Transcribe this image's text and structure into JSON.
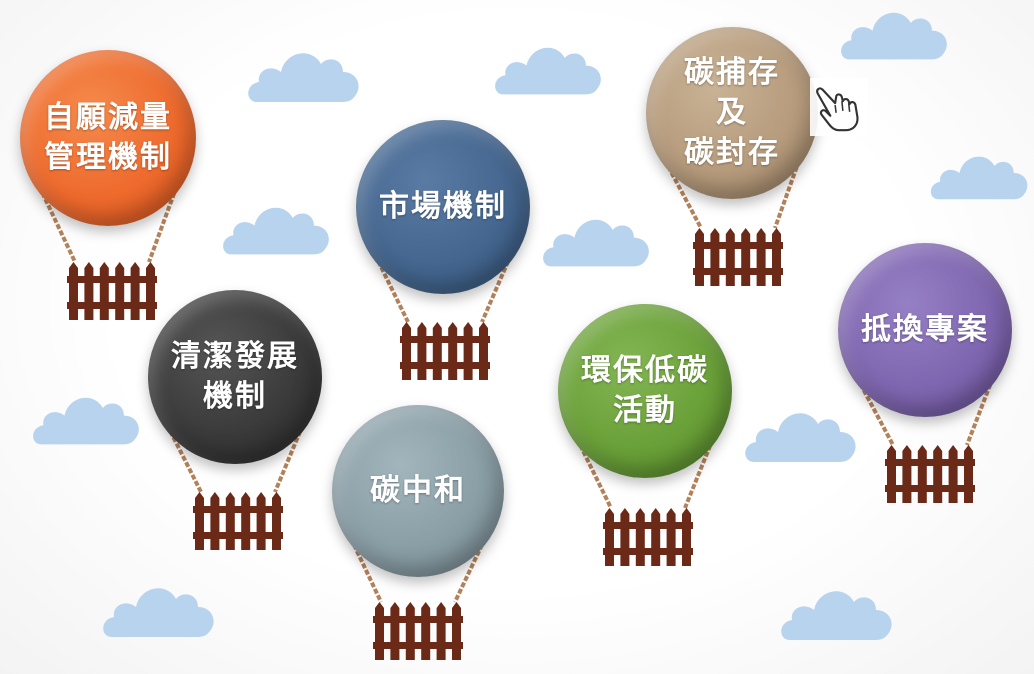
{
  "colors": {
    "cloud": "#b8d3ee",
    "rope": "#b3825a",
    "basket": "#6b2a18",
    "orange": "#ee6a2d",
    "navy": "#44668f",
    "tan": "#b69b7c",
    "charcoal": "#3a3a3a",
    "slate": "#8a9ea6",
    "green": "#6aa038",
    "purple": "#7f66b0"
  },
  "balloons": [
    {
      "id": "voluntary-reduction",
      "lines": [
        "自願減量",
        "管理機制"
      ],
      "color": "orange"
    },
    {
      "id": "market-mechanism",
      "lines": [
        "市場機制"
      ],
      "color": "navy"
    },
    {
      "id": "ccs",
      "lines": [
        "碳捕存",
        "及",
        "碳封存"
      ],
      "color": "tan"
    },
    {
      "id": "clean-development",
      "lines": [
        "清潔發展",
        "機制"
      ],
      "color": "charcoal"
    },
    {
      "id": "carbon-neutral",
      "lines": [
        "碳中和"
      ],
      "color": "slate"
    },
    {
      "id": "eco-activities",
      "lines": [
        "環保低碳",
        "活動"
      ],
      "color": "green"
    },
    {
      "id": "offset-projects",
      "lines": [
        "抵換專案"
      ],
      "color": "purple"
    }
  ],
  "icons": {
    "pointer": "hand-pointer-icon",
    "cloud": "cloud-icon",
    "basket": "fence-basket-icon"
  }
}
